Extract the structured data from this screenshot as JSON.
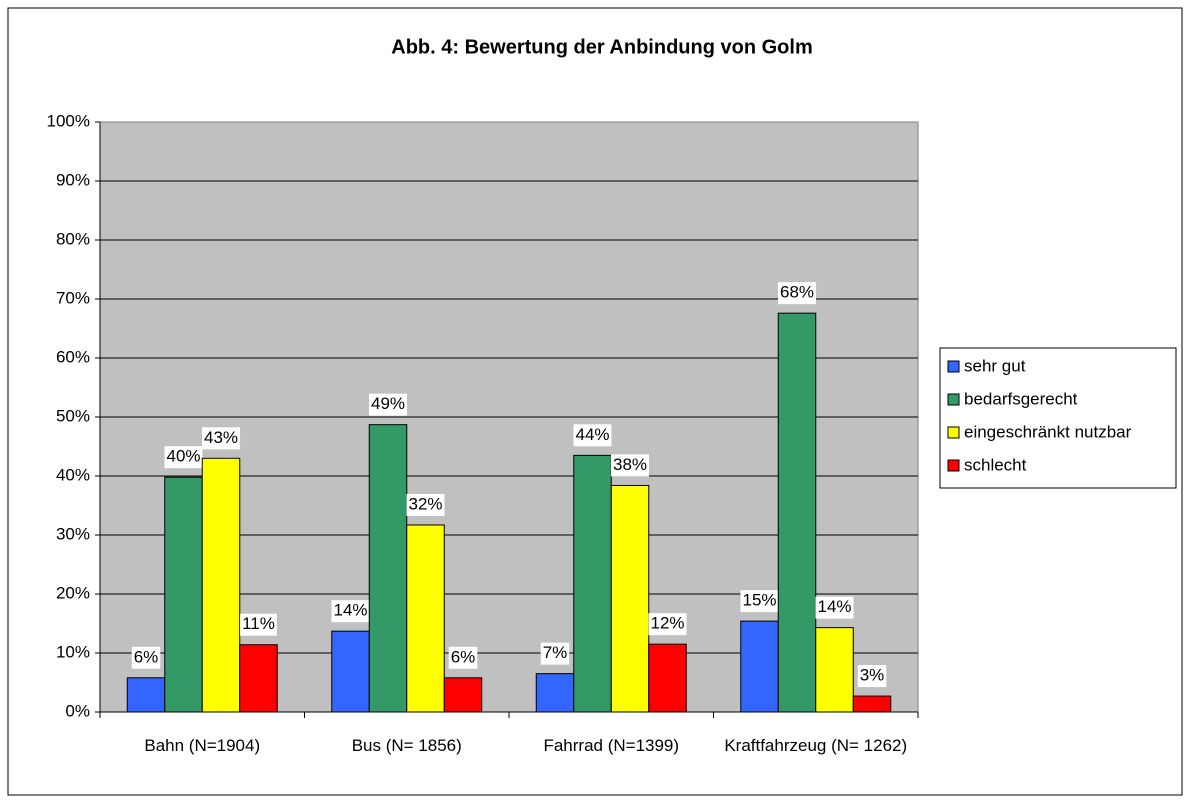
{
  "chart_data": {
    "type": "bar",
    "title": "Abb. 4: Bewertung der Anbindung von Golm",
    "categories": [
      "Bahn (N=1904)",
      "Bus (N= 1856)",
      "Fahrrad (N=1399)",
      "Kraftfahrzeug (N= 1262)"
    ],
    "series": [
      {
        "name": "sehr gut",
        "color": "#3366ff",
        "values": [
          5.8,
          13.7,
          6.5,
          15.4
        ],
        "value_labels": [
          "6%",
          "14%",
          "7%",
          "15%"
        ]
      },
      {
        "name": "bedarfsgerecht",
        "color": "#339966",
        "values": [
          39.8,
          48.7,
          43.5,
          67.6
        ],
        "value_labels": [
          "40%",
          "49%",
          "44%",
          "68%"
        ]
      },
      {
        "name": "eingeschränkt nutzbar",
        "color": "#ffff00",
        "values": [
          43.0,
          31.7,
          38.4,
          14.3
        ],
        "value_labels": [
          "43%",
          "32%",
          "38%",
          "14%"
        ]
      },
      {
        "name": "schlecht",
        "color": "#ff0000",
        "values": [
          11.4,
          5.8,
          11.5,
          2.7
        ],
        "value_labels": [
          "11%",
          "6%",
          "12%",
          "3%"
        ]
      }
    ],
    "ylim": [
      0,
      100
    ],
    "yticks": [
      {
        "value": 0,
        "label": "0%"
      },
      {
        "value": 10,
        "label": "10%"
      },
      {
        "value": 20,
        "label": "20%"
      },
      {
        "value": 30,
        "label": "30%"
      },
      {
        "value": 40,
        "label": "40%"
      },
      {
        "value": 50,
        "label": "50%"
      },
      {
        "value": 60,
        "label": "60%"
      },
      {
        "value": 70,
        "label": "70%"
      },
      {
        "value": 80,
        "label": "80%"
      },
      {
        "value": 90,
        "label": "90%"
      },
      {
        "value": 100,
        "label": "100%"
      }
    ],
    "grid": true,
    "legend": "right"
  }
}
